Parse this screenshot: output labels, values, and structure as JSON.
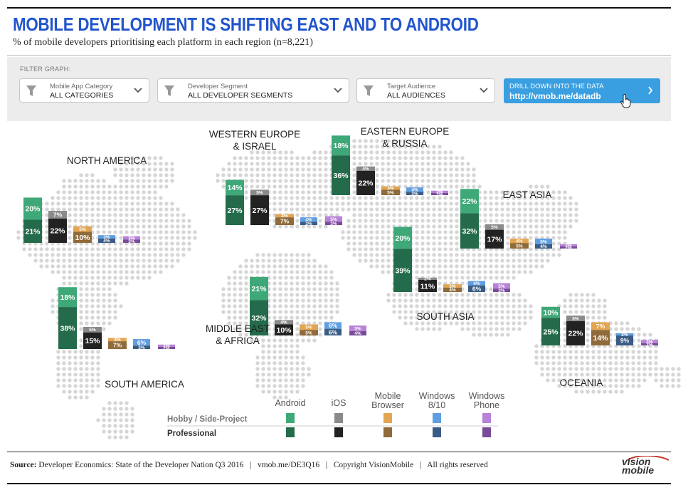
{
  "header": {
    "title": "MOBILE DEVELOPMENT IS SHIFTING EAST AND TO ANDROID",
    "subtitle": "% of mobile developers prioritising each platform in each region (n=8,221)"
  },
  "filters": {
    "label": "FILTER GRAPH:",
    "items": [
      {
        "caption": "Mobile App Category",
        "value": "ALL CATEGORIES"
      },
      {
        "caption": "Developer Segment",
        "value": "ALL DEVELOPER SEGMENTS"
      },
      {
        "caption": "Target Audience",
        "value": "ALL AUDIENCES"
      }
    ],
    "drill": {
      "caption": "DRILL DOWN INTO THE DATA",
      "url": "http://vmob.me/datadb"
    }
  },
  "colors": {
    "Android": {
      "hobby": "#3fa878",
      "pro": "#236b4a"
    },
    "iOS": {
      "hobby": "#8a8a8a",
      "pro": "#222222"
    },
    "Mobile Browser": {
      "hobby": "#e3a552",
      "pro": "#8f6a3a"
    },
    "Windows 8/10": {
      "hobby": "#5f9ee0",
      "pro": "#3a5c84"
    },
    "Windows Phone": {
      "hobby": "#b882d8",
      "pro": "#7a4b98"
    }
  },
  "legend": {
    "platforms": [
      "Android",
      "iOS",
      "Mobile\nBrowser",
      "Windows\n8/10",
      "Windows\nPhone"
    ],
    "rows": [
      "Hobby / Side-Project",
      "Professional"
    ]
  },
  "chart_data": {
    "type": "bar",
    "series_names": [
      "Hobby / Side-Project",
      "Professional"
    ],
    "platforms": [
      "Android",
      "iOS",
      "Mobile Browser",
      "Windows 8/10",
      "Windows Phone"
    ],
    "regions": [
      {
        "name": "NORTH AMERICA",
        "hobby": [
          20,
          7,
          5,
          3,
          3
        ],
        "pro": [
          21,
          22,
          10,
          4,
          3
        ]
      },
      {
        "name": "SOUTH AMERICA",
        "hobby": [
          18,
          5,
          3,
          6,
          2
        ],
        "pro": [
          38,
          15,
          7,
          3,
          2
        ]
      },
      {
        "name": "WESTERN EUROPE\n& ISRAEL",
        "hobby": [
          14,
          5,
          3,
          4,
          5
        ],
        "pro": [
          27,
          27,
          7,
          3,
          3
        ]
      },
      {
        "name": "MIDDLE EAST\n& AFRICA",
        "hobby": [
          21,
          4,
          5,
          6,
          5
        ],
        "pro": [
          32,
          10,
          5,
          6,
          4
        ]
      },
      {
        "name": "EASTERN EUROPE\n& RUSSIA",
        "hobby": [
          18,
          4,
          3,
          4,
          2
        ],
        "pro": [
          36,
          22,
          5,
          3,
          2
        ]
      },
      {
        "name": "SOUTH ASIA",
        "hobby": [
          20,
          2,
          3,
          4,
          5
        ],
        "pro": [
          39,
          11,
          4,
          6,
          3
        ]
      },
      {
        "name": "EAST ASIA",
        "hobby": [
          22,
          5,
          4,
          5,
          2
        ],
        "pro": [
          32,
          17,
          5,
          4,
          2
        ]
      },
      {
        "name": "OCEANIA",
        "hobby": [
          10,
          5,
          7,
          2,
          3
        ],
        "pro": [
          25,
          22,
          14,
          9,
          2
        ]
      }
    ]
  },
  "footer": {
    "source_label": "Source:",
    "source_text": " Developer Economics: State of the Developer Nation Q3 2016   |   vmob.me/DE3Q16   |   Copyright VisionMobile   |   All rights reserved",
    "logo_line1": "vision",
    "logo_line2": "mobile"
  }
}
